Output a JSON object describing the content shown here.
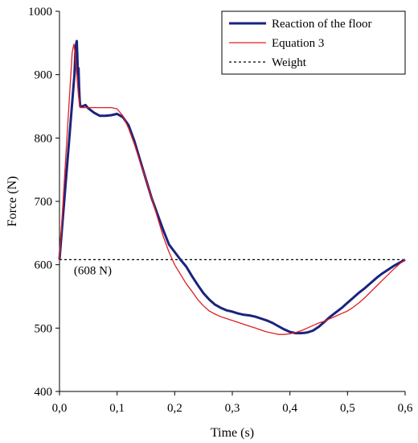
{
  "chart_data": {
    "type": "line",
    "xlabel": "Time (s)",
    "ylabel": "Force (N)",
    "xlim": [
      0,
      0.6
    ],
    "ylim": [
      400,
      1000
    ],
    "x_ticks": [
      0,
      0.1,
      0.2,
      0.3,
      0.4,
      0.5,
      0.6
    ],
    "x_tick_labels": [
      "0,0",
      "0,1",
      "0,2",
      "0,3",
      "0,4",
      "0,5",
      "0,6"
    ],
    "y_ticks": [
      400,
      500,
      600,
      700,
      800,
      900,
      1000
    ],
    "y_tick_labels": [
      "400",
      "500",
      "600",
      "700",
      "800",
      "900",
      "1000"
    ],
    "grid": false,
    "legend_position": "top-right",
    "series": [
      {
        "name": "Reaction of the floor",
        "color": "#1a237e",
        "style": "solid-thick",
        "points": [
          [
            0.0,
            608
          ],
          [
            0.026,
            900
          ],
          [
            0.028,
            945
          ],
          [
            0.03,
            953
          ],
          [
            0.031,
            930
          ],
          [
            0.032,
            900
          ],
          [
            0.033,
            910
          ],
          [
            0.034,
            880
          ],
          [
            0.035,
            860
          ],
          [
            0.036,
            850
          ],
          [
            0.04,
            850
          ],
          [
            0.045,
            852
          ],
          [
            0.05,
            847
          ],
          [
            0.06,
            840
          ],
          [
            0.07,
            835
          ],
          [
            0.08,
            835
          ],
          [
            0.09,
            836
          ],
          [
            0.1,
            838
          ],
          [
            0.11,
            833
          ],
          [
            0.12,
            820
          ],
          [
            0.13,
            795
          ],
          [
            0.14,
            765
          ],
          [
            0.15,
            735
          ],
          [
            0.16,
            705
          ],
          [
            0.17,
            680
          ],
          [
            0.18,
            655
          ],
          [
            0.19,
            632
          ],
          [
            0.2,
            620
          ],
          [
            0.21,
            608
          ],
          [
            0.22,
            597
          ],
          [
            0.23,
            582
          ],
          [
            0.24,
            568
          ],
          [
            0.25,
            555
          ],
          [
            0.26,
            545
          ],
          [
            0.27,
            537
          ],
          [
            0.28,
            532
          ],
          [
            0.29,
            528
          ],
          [
            0.3,
            526
          ],
          [
            0.31,
            523
          ],
          [
            0.32,
            521
          ],
          [
            0.33,
            520
          ],
          [
            0.34,
            518
          ],
          [
            0.35,
            515
          ],
          [
            0.36,
            512
          ],
          [
            0.37,
            508
          ],
          [
            0.38,
            503
          ],
          [
            0.39,
            498
          ],
          [
            0.4,
            494
          ],
          [
            0.41,
            492
          ],
          [
            0.42,
            492
          ],
          [
            0.43,
            493
          ],
          [
            0.44,
            496
          ],
          [
            0.45,
            502
          ],
          [
            0.46,
            510
          ],
          [
            0.47,
            518
          ],
          [
            0.48,
            525
          ],
          [
            0.49,
            532
          ],
          [
            0.5,
            540
          ],
          [
            0.51,
            548
          ],
          [
            0.52,
            556
          ],
          [
            0.53,
            563
          ],
          [
            0.54,
            571
          ],
          [
            0.55,
            579
          ],
          [
            0.56,
            586
          ],
          [
            0.57,
            592
          ],
          [
            0.58,
            598
          ],
          [
            0.59,
            603
          ],
          [
            0.6,
            608
          ]
        ]
      },
      {
        "name": "Equation 3",
        "color": "#e02020",
        "style": "solid-thin",
        "points": [
          [
            0.0,
            608
          ],
          [
            0.022,
            935
          ],
          [
            0.025,
            948
          ],
          [
            0.027,
            935
          ],
          [
            0.03,
            900
          ],
          [
            0.033,
            865
          ],
          [
            0.036,
            848
          ],
          [
            0.04,
            848
          ],
          [
            0.05,
            848
          ],
          [
            0.06,
            848
          ],
          [
            0.07,
            848
          ],
          [
            0.08,
            848
          ],
          [
            0.09,
            848
          ],
          [
            0.1,
            846
          ],
          [
            0.11,
            835
          ],
          [
            0.12,
            815
          ],
          [
            0.13,
            790
          ],
          [
            0.14,
            762
          ],
          [
            0.15,
            735
          ],
          [
            0.16,
            705
          ],
          [
            0.17,
            675
          ],
          [
            0.18,
            645
          ],
          [
            0.19,
            620
          ],
          [
            0.2,
            600
          ],
          [
            0.21,
            585
          ],
          [
            0.22,
            570
          ],
          [
            0.23,
            558
          ],
          [
            0.24,
            545
          ],
          [
            0.25,
            535
          ],
          [
            0.26,
            527
          ],
          [
            0.27,
            522
          ],
          [
            0.28,
            518
          ],
          [
            0.29,
            515
          ],
          [
            0.3,
            512
          ],
          [
            0.31,
            509
          ],
          [
            0.32,
            506
          ],
          [
            0.33,
            503
          ],
          [
            0.34,
            500
          ],
          [
            0.35,
            497
          ],
          [
            0.36,
            494
          ],
          [
            0.37,
            492
          ],
          [
            0.38,
            490
          ],
          [
            0.39,
            490
          ],
          [
            0.4,
            491
          ],
          [
            0.41,
            493
          ],
          [
            0.42,
            496
          ],
          [
            0.43,
            500
          ],
          [
            0.44,
            504
          ],
          [
            0.45,
            508
          ],
          [
            0.46,
            511
          ],
          [
            0.47,
            515
          ],
          [
            0.48,
            519
          ],
          [
            0.49,
            523
          ],
          [
            0.5,
            527
          ],
          [
            0.51,
            533
          ],
          [
            0.52,
            540
          ],
          [
            0.53,
            548
          ],
          [
            0.54,
            557
          ],
          [
            0.55,
            566
          ],
          [
            0.56,
            575
          ],
          [
            0.57,
            584
          ],
          [
            0.58,
            593
          ],
          [
            0.59,
            601
          ],
          [
            0.6,
            608
          ]
        ]
      },
      {
        "name": "Weight",
        "color": "#000000",
        "style": "dashed",
        "points": [
          [
            0.0,
            608
          ],
          [
            0.6,
            608
          ]
        ]
      }
    ],
    "annotations": [
      {
        "text": "(608 N)",
        "x": 0.025,
        "y": 591
      }
    ]
  }
}
